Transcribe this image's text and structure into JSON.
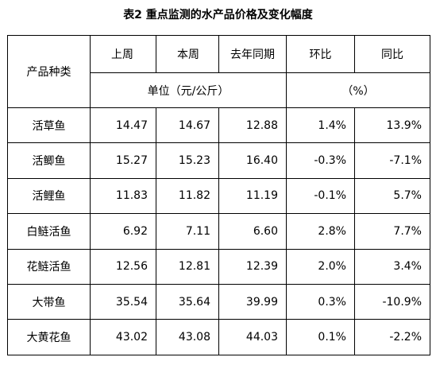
{
  "header": {
    "title": "表2 重点监测的水产品价格及变化幅度"
  },
  "table": {
    "corner": "产品种类",
    "columns": [
      "上周",
      "本周",
      "去年同期",
      "环比",
      "同比"
    ],
    "units": [
      "单位（元/公斤）",
      "（%）"
    ],
    "rows": [
      [
        "活草鱼",
        "14.47",
        "14.67",
        "12.88",
        "1.4%",
        "13.9%"
      ],
      [
        "活鲫鱼",
        "15.27",
        "15.23",
        "16.40",
        "-0.3%",
        "-7.1%"
      ],
      [
        "活鲤鱼",
        "11.83",
        "11.82",
        "11.19",
        "-0.1%",
        "5.7%"
      ],
      [
        "白鲢活鱼",
        "6.92",
        "7.11",
        "6.60",
        "2.8%",
        "7.7%"
      ],
      [
        "花鲢活鱼",
        "12.56",
        "12.81",
        "12.39",
        "2.0%",
        "3.4%"
      ],
      [
        "大带鱼",
        "35.54",
        "35.64",
        "39.99",
        "0.3%",
        "-10.9%"
      ],
      [
        "大黄花鱼",
        "43.02",
        "43.08",
        "44.03",
        "0.1%",
        "-2.2%"
      ]
    ]
  }
}
